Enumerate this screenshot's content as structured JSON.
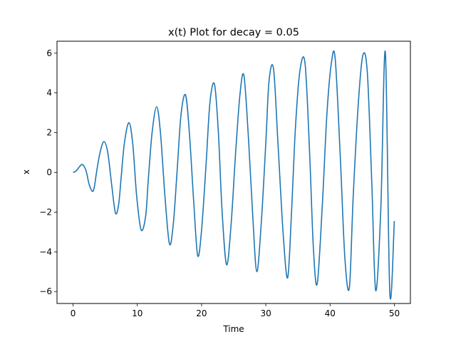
{
  "chart_data": {
    "type": "line",
    "title": "x(t) Plot for decay = 0.05",
    "xlabel": "Time",
    "ylabel": "x",
    "xlim": [
      -2.5,
      52.5
    ],
    "ylim": [
      -6.6,
      6.6
    ],
    "xticks": [
      0,
      10,
      20,
      30,
      40,
      50
    ],
    "yticks": [
      -6,
      -4,
      -2,
      0,
      2,
      4,
      6
    ],
    "xtick_labels": [
      "0",
      "10",
      "20",
      "30",
      "40",
      "50"
    ],
    "ytick_labels": [
      "−6",
      "−4",
      "−2",
      "0",
      "2",
      "4",
      "6"
    ],
    "grid": false,
    "series": [
      {
        "color": "#1f77b4",
        "x": [
          0,
          0.4,
          0.8,
          1.4,
          2.0,
          2.5,
          3.0,
          3.3,
          3.7,
          4.2,
          4.8,
          5.4,
          6.0,
          6.6,
          7.1,
          7.5,
          8.0,
          8.7,
          9.3,
          9.9,
          10.6,
          11.3,
          11.7,
          12.3,
          13.0,
          13.6,
          14.3,
          15.0,
          15.6,
          16.2,
          16.8,
          17.5,
          18.1,
          18.8,
          19.4,
          20.0,
          20.7,
          21.3,
          22.0,
          22.6,
          23.2,
          23.9,
          24.6,
          25.3,
          26.0,
          26.6,
          27.3,
          28.0,
          28.6,
          29.3,
          30.0,
          30.5,
          31.2,
          31.9,
          32.7,
          33.4,
          34.0,
          34.6,
          35.3,
          36.1,
          36.8,
          37.4,
          38.0,
          38.8,
          39.5,
          40.2,
          40.8,
          41.6,
          42.3,
          43.0,
          43.6,
          44.4,
          45.1,
          45.8,
          46.5,
          47.1,
          47.9,
          48.6,
          49.3,
          50.0
        ],
        "y": [
          0,
          0.05,
          0.2,
          0.4,
          0.1,
          -0.6,
          -0.95,
          -0.75,
          0.1,
          1.0,
          1.55,
          1.0,
          -0.6,
          -2.05,
          -1.6,
          -0.2,
          1.5,
          2.5,
          1.4,
          -1.2,
          -2.9,
          -2.2,
          -0.4,
          2.0,
          3.3,
          2.0,
          -1.2,
          -3.6,
          -2.6,
          0.1,
          2.9,
          3.9,
          2.0,
          -1.6,
          -4.2,
          -2.9,
          0.4,
          3.5,
          4.45,
          2.1,
          -2.0,
          -4.65,
          -2.6,
          1.0,
          4.0,
          4.85,
          1.7,
          -2.4,
          -5.0,
          -2.5,
          1.5,
          4.6,
          5.2,
          1.4,
          -3.1,
          -5.3,
          -2.0,
          2.2,
          5.1,
          5.5,
          1.1,
          -3.8,
          -5.6,
          -1.6,
          2.9,
          5.5,
          5.7,
          0.7,
          -4.3,
          -5.8,
          -1.2,
          3.5,
          5.9,
          5.0,
          -0.6,
          -5.95,
          -1.8,
          6.05,
          -6.1,
          -2.45
        ]
      }
    ]
  }
}
